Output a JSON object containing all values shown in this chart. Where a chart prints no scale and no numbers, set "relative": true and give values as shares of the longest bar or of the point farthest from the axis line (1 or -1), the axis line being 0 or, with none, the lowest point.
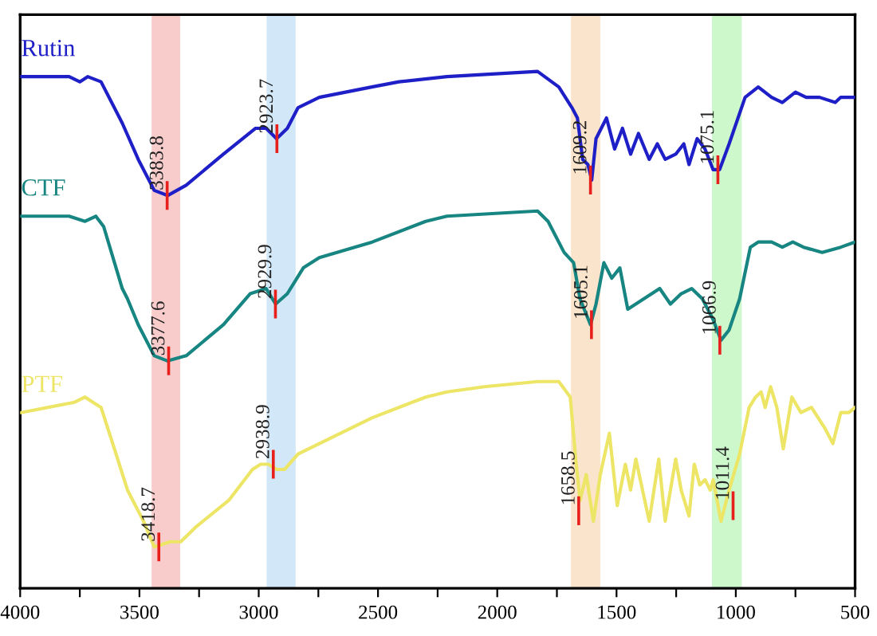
{
  "chart_data": {
    "type": "line",
    "relative": true,
    "legend": false,
    "grid": false,
    "xlim": [
      4000,
      500
    ],
    "xticks": [
      4000,
      {
        "value": 3750,
        "label": null
      },
      3500,
      {
        "value": 3250,
        "label": null
      },
      3000,
      {
        "value": 2750,
        "label": null
      },
      2500,
      {
        "value": 2250,
        "label": null
      },
      2000,
      {
        "value": 1750,
        "label": null
      },
      1500,
      {
        "value": 1250,
        "label": null
      },
      1000,
      {
        "value": 750,
        "label": null
      },
      500
    ],
    "bands": [
      {
        "axis": "x",
        "from": 3449,
        "to": 3329,
        "color": "#f9cccc"
      },
      {
        "axis": "x",
        "from": 2967,
        "to": 2845,
        "color": "#d2e8f8"
      },
      {
        "axis": "x",
        "from": 1691,
        "to": 1568,
        "color": "#fbe4cc"
      },
      {
        "axis": "x",
        "from": 1100,
        "to": 975,
        "color": "#ccf8cc"
      }
    ],
    "series": [
      {
        "name": "Rutin",
        "color": "#1f1fc8",
        "x": [
          3996,
          3795,
          3750,
          3717,
          3661,
          3572,
          3505,
          3438,
          3382,
          3304,
          3148,
          3014,
          2969,
          2925,
          2880,
          2835,
          2746,
          2526,
          2412,
          2211,
          1831,
          1742,
          1687,
          1664,
          1642,
          1620,
          1604,
          1586,
          1542,
          1508,
          1475,
          1441,
          1408,
          1363,
          1329,
          1296,
          1252,
          1218,
          1196,
          1162,
          1129,
          1095,
          1068,
          1028,
          961,
          906,
          850,
          805,
          750,
          705,
          649,
          583,
          560,
          500
        ],
        "values": [
          0.99,
          0.99,
          0.98,
          0.99,
          0.98,
          0.9,
          0.83,
          0.77,
          0.76,
          0.78,
          0.84,
          0.89,
          0.89,
          0.87,
          0.89,
          0.93,
          0.95,
          0.97,
          0.98,
          0.99,
          1.0,
          0.97,
          0.93,
          0.91,
          0.83,
          0.82,
          0.79,
          0.87,
          0.91,
          0.85,
          0.89,
          0.84,
          0.88,
          0.83,
          0.86,
          0.83,
          0.84,
          0.86,
          0.82,
          0.87,
          0.85,
          0.81,
          0.81,
          0.86,
          0.95,
          0.97,
          0.95,
          0.94,
          0.96,
          0.95,
          0.95,
          0.94,
          0.95,
          0.95
        ]
      },
      {
        "name": "CTF",
        "color": "#178581",
        "x": [
          3996,
          3795,
          3728,
          3683,
          3650,
          3572,
          3550,
          3505,
          3438,
          3382,
          3304,
          3148,
          3036,
          2969,
          2929,
          2880,
          2813,
          2746,
          2524,
          2300,
          2211,
          1831,
          1787,
          1720,
          1680,
          1653,
          1609,
          1586,
          1553,
          1520,
          1486,
          1453,
          1386,
          1319,
          1274,
          1229,
          1185,
          1140,
          1095,
          1062,
          1028,
          984,
          939,
          906,
          850,
          805,
          761,
          716,
          638,
          560,
          500
        ],
        "values": [
          0.72,
          0.72,
          0.71,
          0.72,
          0.7,
          0.58,
          0.56,
          0.51,
          0.45,
          0.44,
          0.45,
          0.51,
          0.57,
          0.58,
          0.55,
          0.57,
          0.62,
          0.64,
          0.67,
          0.71,
          0.72,
          0.73,
          0.71,
          0.65,
          0.63,
          0.56,
          0.51,
          0.55,
          0.63,
          0.6,
          0.62,
          0.54,
          0.56,
          0.58,
          0.55,
          0.57,
          0.58,
          0.56,
          0.52,
          0.48,
          0.5,
          0.56,
          0.66,
          0.67,
          0.67,
          0.66,
          0.67,
          0.66,
          0.65,
          0.66,
          0.67
        ]
      },
      {
        "name": "PTF",
        "color": "#ede566",
        "x": [
          3996,
          3772,
          3728,
          3695,
          3661,
          3605,
          3550,
          3483,
          3438,
          3371,
          3327,
          3260,
          3126,
          3026,
          2992,
          2959,
          2925,
          2892,
          2835,
          2746,
          2524,
          2300,
          2211,
          2055,
          1831,
          1742,
          1694,
          1671,
          1653,
          1627,
          1597,
          1568,
          1530,
          1497,
          1463,
          1441,
          1419,
          1363,
          1323,
          1296,
          1252,
          1229,
          1196,
          1174,
          1151,
          1129,
          1107,
          1095,
          1062,
          1028,
          984,
          944,
          917,
          894,
          877,
          854,
          828,
          801,
          765,
          727,
          683,
          627,
          593,
          560,
          526,
          500
        ],
        "values": [
          0.34,
          0.36,
          0.37,
          0.36,
          0.35,
          0.27,
          0.19,
          0.13,
          0.08,
          0.09,
          0.09,
          0.12,
          0.17,
          0.23,
          0.24,
          0.24,
          0.23,
          0.23,
          0.26,
          0.28,
          0.33,
          0.37,
          0.38,
          0.39,
          0.4,
          0.4,
          0.37,
          0.25,
          0.17,
          0.22,
          0.13,
          0.22,
          0.3,
          0.16,
          0.24,
          0.19,
          0.25,
          0.13,
          0.25,
          0.13,
          0.25,
          0.19,
          0.14,
          0.24,
          0.2,
          0.21,
          0.19,
          0.21,
          0.13,
          0.19,
          0.26,
          0.35,
          0.37,
          0.38,
          0.35,
          0.39,
          0.35,
          0.27,
          0.37,
          0.34,
          0.35,
          0.31,
          0.28,
          0.34,
          0.34,
          0.35
        ]
      }
    ],
    "annotations": [
      {
        "text": "3383.8",
        "x": 3383.8,
        "y": 0.76
      },
      {
        "text": "2923.7",
        "x": 2923.7,
        "y": 0.87
      },
      {
        "text": "1609.2",
        "x": 1609.2,
        "y": 0.79
      },
      {
        "text": "1075.1",
        "x": 1075.1,
        "y": 0.81
      },
      {
        "text": "3377.6",
        "x": 3377.6,
        "y": 0.44
      },
      {
        "text": "2929.9",
        "x": 2929.9,
        "y": 0.55
      },
      {
        "text": "1605.1",
        "x": 1605.1,
        "y": 0.51
      },
      {
        "text": "1066.9",
        "x": 1066.9,
        "y": 0.48
      },
      {
        "text": "3418.7",
        "x": 3418.7,
        "y": 0.08
      },
      {
        "text": "2938.9",
        "x": 2938.9,
        "y": 0.24
      },
      {
        "text": "1658.5",
        "x": 1658.5,
        "y": 0.15
      },
      {
        "text": "1011.4",
        "x": 1011.4,
        "y": 0.16
      }
    ]
  }
}
